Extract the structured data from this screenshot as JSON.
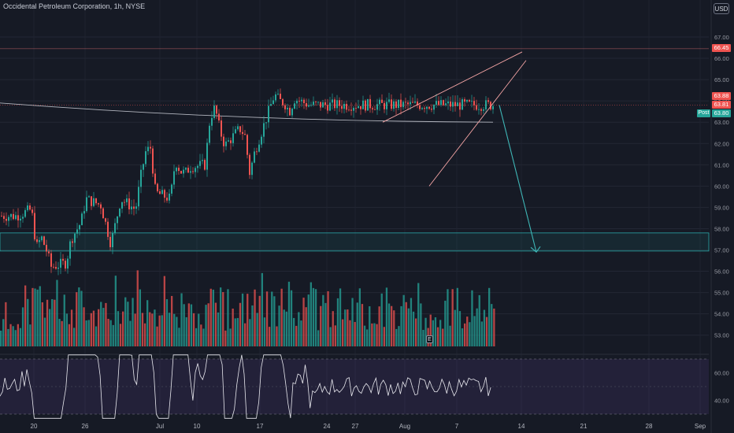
{
  "header": {
    "title": "Occidental Petroleum Corporation, 1h, NYSE",
    "currency": "USD"
  },
  "price_tags": {
    "resistance": "66.45",
    "last_red": "63.88",
    "last_red2": "63.81",
    "post_label": "Post",
    "post_price": "63.80"
  },
  "earnings_marker": "E",
  "colors": {
    "background": "#161a25",
    "up": "#26a69a",
    "down": "#ef5350",
    "ma_line": "#b2b5be",
    "wedge": "#f7a6a6",
    "zone_border": "#2aa8a8",
    "arrow": "#3fb6b6",
    "rsi_band": "#7e57c2"
  },
  "chart_data": [
    {
      "type": "candlestick",
      "title": "Occidental Petroleum Corporation, 1h, NYSE",
      "x_ticks": [
        "20",
        "26",
        "Jul",
        "10",
        "17",
        "24",
        "27",
        "Aug",
        "7",
        "14",
        "21",
        "28",
        "Sep"
      ],
      "y_ticks": [
        "67.00",
        "66.00",
        "65.00",
        "64.00",
        "63.00",
        "62.00",
        "61.00",
        "60.00",
        "59.00",
        "58.00",
        "57.00",
        "56.00",
        "55.00",
        "54.00",
        "53.00"
      ],
      "ylim": [
        52.4,
        68.3
      ],
      "close_path": [
        [
          "2023-06-16",
          58.6
        ],
        [
          "2023-06-19",
          58.9
        ],
        [
          "2023-06-20",
          57.1
        ],
        [
          "2023-06-21",
          57.6
        ],
        [
          "2023-06-22",
          57.0
        ],
        [
          "2023-06-23",
          56.2
        ],
        [
          "2023-06-26",
          56.4
        ],
        [
          "2023-06-27",
          57.5
        ],
        [
          "2023-06-28",
          57.9
        ],
        [
          "2023-06-29",
          58.3
        ],
        [
          "2023-06-30",
          59.4
        ],
        [
          "2023-07-03",
          59.1
        ],
        [
          "2023-07-05",
          57.3
        ],
        [
          "2023-07-06",
          58.3
        ],
        [
          "2023-07-07",
          59.4
        ],
        [
          "2023-07-10",
          58.9
        ],
        [
          "2023-07-11",
          60.4
        ],
        [
          "2023-07-12",
          61.6
        ],
        [
          "2023-07-13",
          61.8
        ],
        [
          "2023-07-14",
          59.7
        ],
        [
          "2023-07-17",
          59.4
        ],
        [
          "2023-07-18",
          61.2
        ],
        [
          "2023-07-19",
          60.7
        ],
        [
          "2023-07-20",
          60.6
        ],
        [
          "2023-07-21",
          60.9
        ],
        [
          "2023-07-24",
          61.0
        ],
        [
          "2023-07-25",
          63.2
        ],
        [
          "2023-07-26",
          63.7
        ],
        [
          "2023-07-27",
          62.6
        ],
        [
          "2023-07-28",
          61.9
        ],
        [
          "2023-07-31",
          62.7
        ],
        [
          "2023-08-01",
          62.4
        ],
        [
          "2023-08-02",
          60.6
        ],
        [
          "2023-08-03",
          61.6
        ],
        [
          "2023-08-04",
          62.3
        ],
        [
          "2023-08-07",
          64.3
        ],
        [
          "2023-08-08",
          64.0
        ],
        [
          "2023-08-09",
          63.9
        ],
        [
          "2023-08-10",
          63.5
        ],
        [
          "2023-08-11",
          64.1
        ],
        [
          "2023-08-14",
          63.81
        ]
      ],
      "ma_line": {
        "start": 63.9,
        "end": 63.0
      },
      "resistance_line": 66.45,
      "support_zone": [
        56.95,
        57.8
      ],
      "rising_wedge": {
        "upper": [
          63.0,
          66.3
        ],
        "lower": [
          60.0,
          63.6
        ]
      },
      "projected_arrow": {
        "from": 63.8,
        "to": 56.9
      },
      "volume_panel": {
        "type": "bar",
        "bars": 200,
        "style": "green/red alternating"
      },
      "rsi_panel": {
        "type": "line",
        "y_ticks": [
          "60.00",
          "40.00"
        ],
        "band": [
          30,
          70
        ],
        "ylim": [
          25,
          75
        ]
      }
    }
  ]
}
